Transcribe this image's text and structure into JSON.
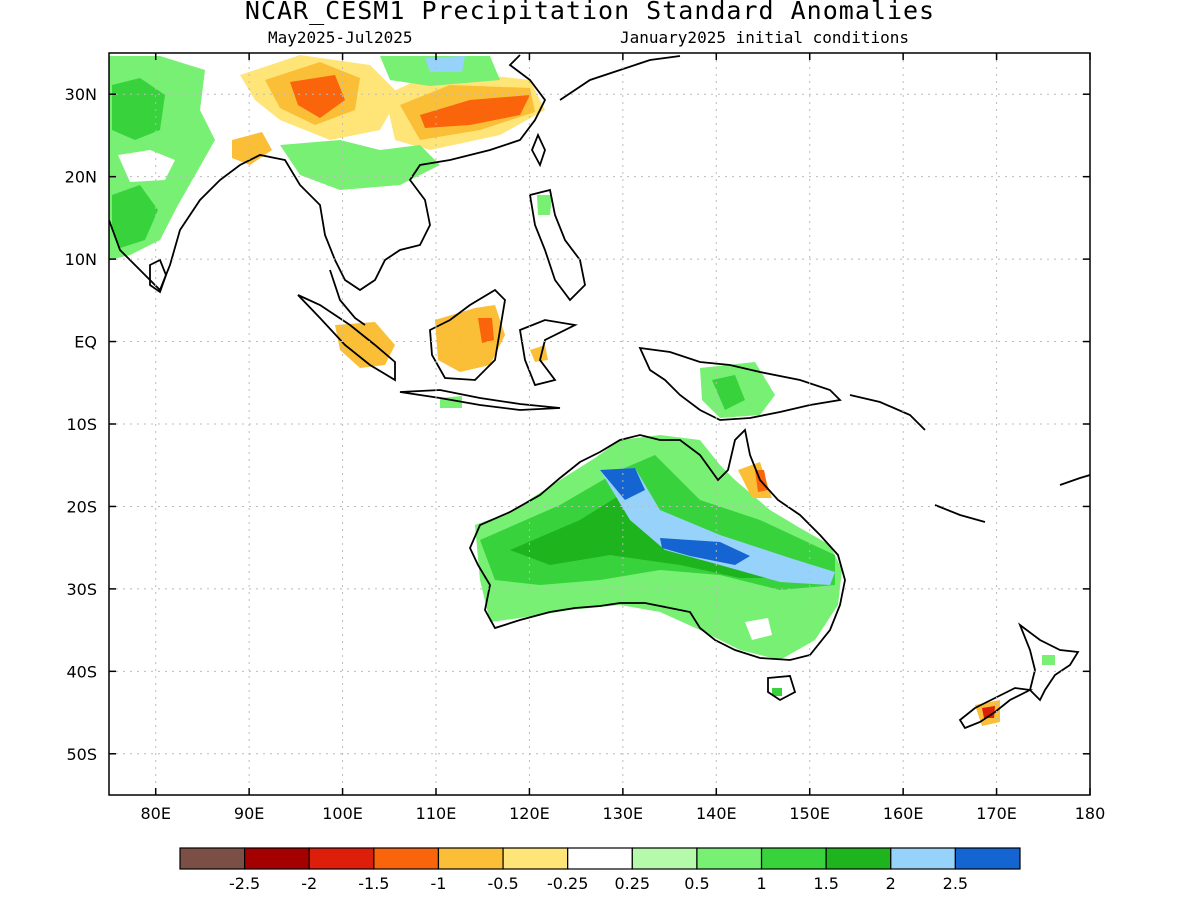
{
  "header": {
    "title": "NCAR_CESM1 Precipitation Standard Anomalies",
    "period": "May2025-Jul2025",
    "init": "January2025 initial conditions"
  },
  "map": {
    "lon_range": [
      75,
      180
    ],
    "lat_range": [
      -55,
      35
    ],
    "lat_ticks": [
      {
        "lat": 30,
        "label": "30N"
      },
      {
        "lat": 20,
        "label": "20N"
      },
      {
        "lat": 10,
        "label": "10N"
      },
      {
        "lat": 0,
        "label": "EQ"
      },
      {
        "lat": -10,
        "label": "10S"
      },
      {
        "lat": -20,
        "label": "20S"
      },
      {
        "lat": -30,
        "label": "30S"
      },
      {
        "lat": -40,
        "label": "40S"
      },
      {
        "lat": -50,
        "label": "50S"
      }
    ],
    "lon_ticks": [
      {
        "lon": 80,
        "label": "80E"
      },
      {
        "lon": 90,
        "label": "90E"
      },
      {
        "lon": 100,
        "label": "100E"
      },
      {
        "lon": 110,
        "label": "110E"
      },
      {
        "lon": 120,
        "label": "120E"
      },
      {
        "lon": 130,
        "label": "130E"
      },
      {
        "lon": 140,
        "label": "140E"
      },
      {
        "lon": 150,
        "label": "150E"
      },
      {
        "lon": 160,
        "label": "160E"
      },
      {
        "lon": 170,
        "label": "170E"
      },
      {
        "lon": 180,
        "label": "180"
      }
    ],
    "grid": true
  },
  "legend": {
    "colors": [
      "#7b4f45",
      "#a50000",
      "#dc1e0a",
      "#fa640a",
      "#fabe37",
      "#ffe478",
      "#ffffff",
      "#b4faaa",
      "#78f073",
      "#37d23c",
      "#1eb41e",
      "#96d2fa",
      "#1464d2"
    ],
    "labels": [
      "-2.5",
      "-2",
      "-1.5",
      "-1",
      "-0.5",
      "-0.25",
      "0.25",
      "0.5",
      "1",
      "1.5",
      "2",
      "2.5"
    ]
  }
}
